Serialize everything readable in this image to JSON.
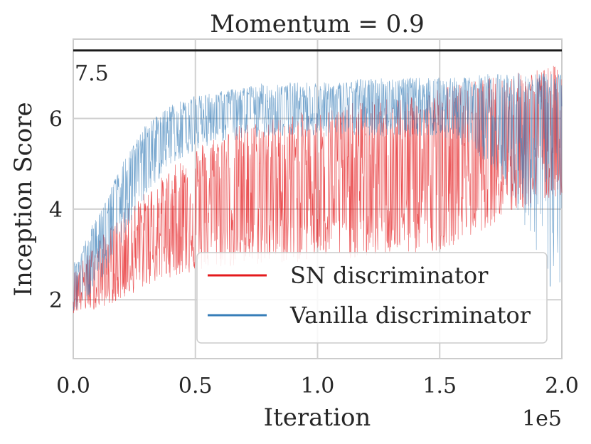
{
  "chart_data": {
    "type": "line",
    "title": "Momentum = 0.9",
    "xlabel": "Iteration",
    "ylabel": "Inception Score",
    "x_offset_label": "1e5",
    "xlim": [
      0,
      2.0
    ],
    "ylim": [
      0.7,
      7.75
    ],
    "xticks": [
      0.0,
      0.5,
      1.0,
      1.5,
      2.0
    ],
    "xtick_labels": [
      "0.0",
      "0.5",
      "1.0",
      "1.5",
      "2.0"
    ],
    "yticks": [
      2,
      4,
      6
    ],
    "ytick_labels": [
      "2",
      "4",
      "6"
    ],
    "grid": true,
    "legend_position": "lower-right",
    "reference_line": {
      "y": 7.5,
      "label": "7.5",
      "color": "#1a1a1a"
    },
    "series": [
      {
        "name": "SN discriminator",
        "color": "#e41a1c",
        "x": [
          0.0,
          0.1,
          0.2,
          0.3,
          0.4,
          0.5,
          0.6,
          0.7,
          0.8,
          0.9,
          1.0,
          1.1,
          1.2,
          1.3,
          1.4,
          1.5,
          1.6,
          1.7,
          1.8,
          1.9,
          2.0
        ],
        "center": [
          2.2,
          2.5,
          2.9,
          3.3,
          3.7,
          4.0,
          4.2,
          4.3,
          4.4,
          4.5,
          4.6,
          4.6,
          4.7,
          4.8,
          4.9,
          5.0,
          5.2,
          5.4,
          5.6,
          5.7,
          5.8
        ],
        "low": [
          1.7,
          1.8,
          2.0,
          2.3,
          2.5,
          2.6,
          2.7,
          2.7,
          2.8,
          2.8,
          2.9,
          2.9,
          2.9,
          3.0,
          3.0,
          3.1,
          3.3,
          3.6,
          3.9,
          4.1,
          4.3
        ],
        "high": [
          2.6,
          3.3,
          3.9,
          4.4,
          4.9,
          5.4,
          5.7,
          5.9,
          6.0,
          6.1,
          6.2,
          6.3,
          6.4,
          6.5,
          6.6,
          6.7,
          6.8,
          6.9,
          7.0,
          7.1,
          7.2
        ]
      },
      {
        "name": "Vanilla discriminator",
        "color": "#377eb8",
        "x": [
          0.0,
          0.1,
          0.2,
          0.3,
          0.4,
          0.5,
          0.6,
          0.7,
          0.8,
          0.9,
          1.0,
          1.1,
          1.2,
          1.3,
          1.4,
          1.5,
          1.6,
          1.7,
          1.8,
          1.9,
          2.0
        ],
        "center": [
          2.3,
          3.2,
          4.3,
          5.3,
          5.9,
          6.1,
          6.2,
          6.3,
          6.3,
          6.3,
          6.35,
          6.35,
          6.4,
          6.4,
          6.4,
          6.4,
          6.4,
          6.4,
          6.3,
          6.2,
          6.0
        ],
        "low": [
          1.6,
          2.3,
          3.3,
          4.3,
          5.0,
          5.3,
          5.5,
          5.5,
          5.6,
          5.6,
          5.6,
          5.6,
          5.6,
          5.6,
          5.6,
          5.6,
          5.4,
          5.0,
          4.2,
          3.0,
          1.5
        ],
        "high": [
          2.8,
          3.9,
          5.0,
          5.9,
          6.3,
          6.5,
          6.6,
          6.7,
          6.8,
          6.8,
          6.8,
          6.8,
          6.9,
          6.9,
          6.9,
          6.9,
          6.9,
          7.0,
          7.0,
          7.0,
          7.0
        ]
      }
    ]
  }
}
